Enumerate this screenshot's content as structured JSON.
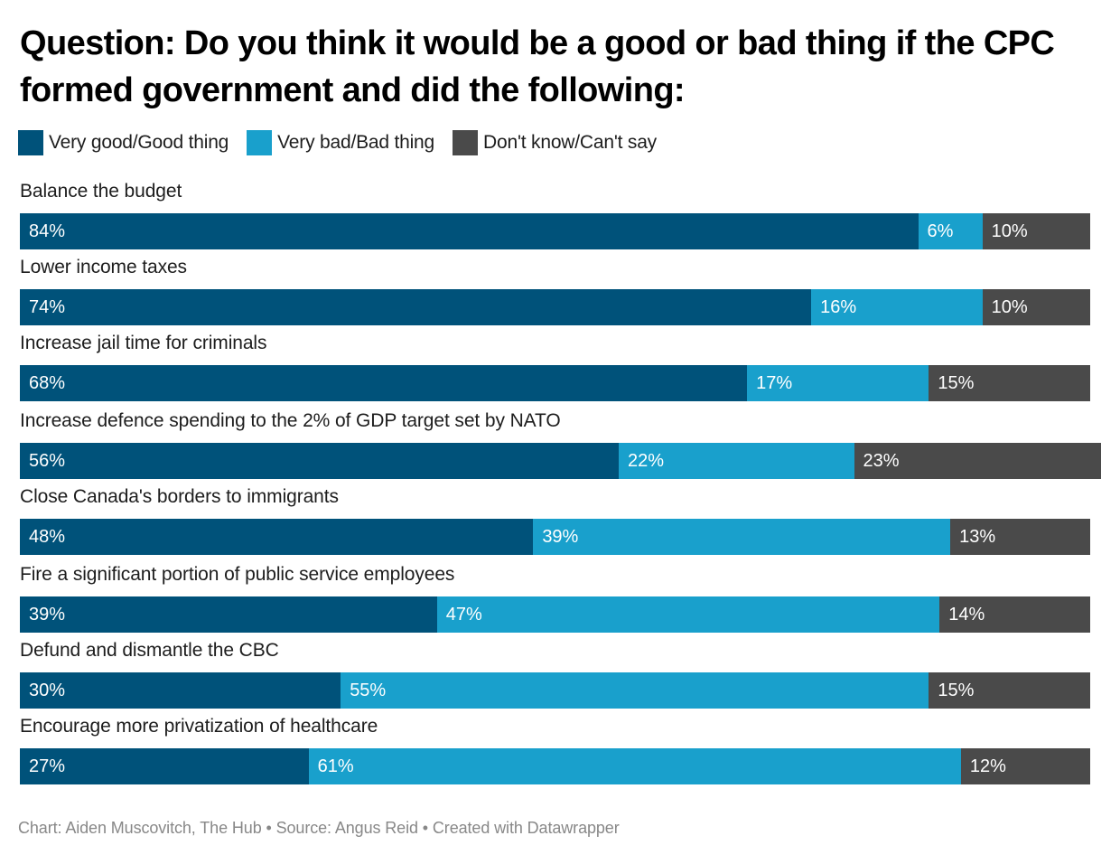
{
  "chart_data": {
    "type": "bar",
    "orientation": "horizontal",
    "stacked": true,
    "title": "Question: Do you think it would be a good or bad thing if the CPC formed government and did the following:",
    "legend_position": "top-left",
    "value_suffix": "%",
    "series": [
      {
        "name": "Very good/Good thing",
        "color": "#00527a",
        "values": [
          84,
          74,
          68,
          56,
          48,
          39,
          30,
          27
        ]
      },
      {
        "name": "Very bad/Bad thing",
        "color": "#19a0cc",
        "values": [
          6,
          16,
          17,
          22,
          39,
          47,
          55,
          61
        ]
      },
      {
        "name": "Don't know/Can't say",
        "color": "#4a4a4a",
        "values": [
          10,
          10,
          15,
          23,
          13,
          14,
          15,
          12
        ]
      }
    ],
    "categories": [
      "Balance the budget",
      "Lower income taxes",
      "Increase jail time for criminals",
      "Increase defence spending to the 2% of GDP target set by NATO",
      "Close Canada's borders to immigrants",
      "Fire a significant portion of public service employees",
      "Defund and dismantle the CBC",
      "Encourage more privatization of healthcare"
    ],
    "xlim": [
      0,
      100
    ],
    "footer": "Chart: Aiden Muscovitch, The Hub • Source: Angus Reid • Created with Datawrapper"
  }
}
